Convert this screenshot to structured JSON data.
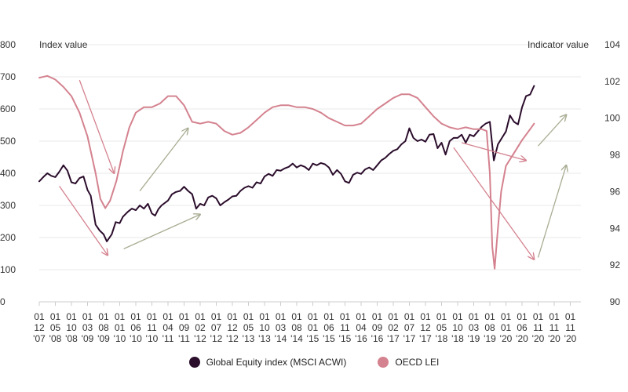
{
  "chart_data": {
    "type": "line",
    "title": "",
    "left_axis": {
      "label": "Index value",
      "ylim": [
        0,
        800
      ],
      "ticks": [
        0,
        100,
        200,
        300,
        400,
        500,
        600,
        700,
        800
      ]
    },
    "right_axis": {
      "label": "Indicator value",
      "ylim": [
        90,
        104
      ],
      "ticks": [
        90,
        92,
        94,
        96,
        98,
        100,
        102,
        104
      ]
    },
    "x_tick_labels": [
      [
        "01",
        "12",
        "'07"
      ],
      [
        "01",
        "05",
        "'08"
      ],
      [
        "01",
        "10",
        "'08"
      ],
      [
        "01",
        "03",
        "'09"
      ],
      [
        "01",
        "08",
        "'09"
      ],
      [
        "01",
        "01",
        "'10"
      ],
      [
        "01",
        "06",
        "'10"
      ],
      [
        "01",
        "11",
        "'10"
      ],
      [
        "01",
        "04",
        "'11"
      ],
      [
        "01",
        "09",
        "'11"
      ],
      [
        "01",
        "02",
        "'12"
      ],
      [
        "01",
        "07",
        "'12"
      ],
      [
        "01",
        "12",
        "'12"
      ],
      [
        "01",
        "05",
        "'13"
      ],
      [
        "01",
        "10",
        "'13"
      ],
      [
        "01",
        "03",
        "'14"
      ],
      [
        "01",
        "08",
        "'14"
      ],
      [
        "01",
        "01",
        "'15"
      ],
      [
        "01",
        "06",
        "'15"
      ],
      [
        "01",
        "11",
        "'15"
      ],
      [
        "01",
        "04",
        "'16"
      ],
      [
        "01",
        "09",
        "'16"
      ],
      [
        "01",
        "02",
        "'17"
      ],
      [
        "01",
        "07",
        "'17"
      ],
      [
        "01",
        "12",
        "'17"
      ],
      [
        "01",
        "05",
        "'18"
      ],
      [
        "01",
        "10",
        "'18"
      ],
      [
        "01",
        "03",
        "'19"
      ],
      [
        "01",
        "08",
        "'19"
      ],
      [
        "01",
        "01",
        "'20"
      ],
      [
        "01",
        "06",
        "'20"
      ],
      [
        "01",
        "11",
        "'20"
      ],
      [
        "01",
        "11",
        "'20"
      ],
      [
        "01",
        "11",
        "'20"
      ]
    ],
    "grid": "horizontal",
    "legend_position": "bottom-center",
    "series": [
      {
        "name": "Global Equity index (MSCI ACWI)",
        "axis": "left",
        "color": "#2b0d2c",
        "points": [
          [
            0,
            375
          ],
          [
            0.25,
            388
          ],
          [
            0.5,
            400
          ],
          [
            0.75,
            392
          ],
          [
            1,
            388
          ],
          [
            1.25,
            405
          ],
          [
            1.5,
            425
          ],
          [
            1.75,
            408
          ],
          [
            2,
            372
          ],
          [
            2.25,
            368
          ],
          [
            2.5,
            385
          ],
          [
            2.75,
            390
          ],
          [
            3,
            348
          ],
          [
            3.2,
            330
          ],
          [
            3.5,
            240
          ],
          [
            3.75,
            222
          ],
          [
            4,
            210
          ],
          [
            4.2,
            188
          ],
          [
            4.5,
            210
          ],
          [
            4.75,
            248
          ],
          [
            5,
            245
          ],
          [
            5.2,
            265
          ],
          [
            5.5,
            280
          ],
          [
            5.75,
            290
          ],
          [
            6,
            285
          ],
          [
            6.25,
            300
          ],
          [
            6.5,
            290
          ],
          [
            6.75,
            305
          ],
          [
            7,
            275
          ],
          [
            7.2,
            268
          ],
          [
            7.4,
            288
          ],
          [
            7.6,
            300
          ],
          [
            8,
            315
          ],
          [
            8.25,
            335
          ],
          [
            8.5,
            342
          ],
          [
            8.75,
            345
          ],
          [
            9,
            358
          ],
          [
            9.25,
            345
          ],
          [
            9.5,
            335
          ],
          [
            9.75,
            290
          ],
          [
            10,
            305
          ],
          [
            10.25,
            300
          ],
          [
            10.5,
            325
          ],
          [
            10.75,
            330
          ],
          [
            11,
            322
          ],
          [
            11.25,
            300
          ],
          [
            11.5,
            310
          ],
          [
            11.75,
            318
          ],
          [
            12,
            328
          ],
          [
            12.25,
            330
          ],
          [
            12.5,
            345
          ],
          [
            12.75,
            355
          ],
          [
            13,
            360
          ],
          [
            13.25,
            355
          ],
          [
            13.5,
            372
          ],
          [
            13.75,
            368
          ],
          [
            14,
            390
          ],
          [
            14.25,
            398
          ],
          [
            14.5,
            392
          ],
          [
            14.75,
            410
          ],
          [
            15,
            408
          ],
          [
            15.25,
            415
          ],
          [
            15.5,
            420
          ],
          [
            15.75,
            430
          ],
          [
            16,
            418
          ],
          [
            16.25,
            425
          ],
          [
            16.5,
            420
          ],
          [
            16.75,
            410
          ],
          [
            17,
            430
          ],
          [
            17.25,
            425
          ],
          [
            17.5,
            432
          ],
          [
            17.75,
            428
          ],
          [
            18,
            418
          ],
          [
            18.25,
            395
          ],
          [
            18.5,
            410
          ],
          [
            18.75,
            398
          ],
          [
            19,
            375
          ],
          [
            19.25,
            370
          ],
          [
            19.5,
            395
          ],
          [
            19.75,
            402
          ],
          [
            20,
            398
          ],
          [
            20.25,
            412
          ],
          [
            20.5,
            418
          ],
          [
            20.75,
            410
          ],
          [
            21,
            425
          ],
          [
            21.25,
            440
          ],
          [
            21.5,
            448
          ],
          [
            21.75,
            460
          ],
          [
            22,
            470
          ],
          [
            22.25,
            475
          ],
          [
            22.5,
            490
          ],
          [
            22.75,
            500
          ],
          [
            23,
            540
          ],
          [
            23.25,
            510
          ],
          [
            23.5,
            500
          ],
          [
            23.75,
            505
          ],
          [
            24,
            498
          ],
          [
            24.25,
            520
          ],
          [
            24.5,
            522
          ],
          [
            24.75,
            478
          ],
          [
            25,
            495
          ],
          [
            25.25,
            458
          ],
          [
            25.5,
            500
          ],
          [
            25.75,
            510
          ],
          [
            26,
            510
          ],
          [
            26.25,
            520
          ],
          [
            26.5,
            495
          ],
          [
            26.75,
            520
          ],
          [
            27,
            515
          ],
          [
            27.25,
            530
          ],
          [
            27.5,
            545
          ],
          [
            27.75,
            555
          ],
          [
            28,
            560
          ],
          [
            28.25,
            440
          ],
          [
            28.5,
            490
          ],
          [
            28.75,
            510
          ],
          [
            29,
            530
          ],
          [
            29.25,
            580
          ],
          [
            29.5,
            560
          ],
          [
            29.75,
            552
          ],
          [
            30,
            605
          ],
          [
            30.25,
            640
          ],
          [
            30.5,
            645
          ],
          [
            30.75,
            672
          ]
        ]
      },
      {
        "name": "OECD LEI",
        "axis": "right",
        "color": "#d4828f",
        "points": [
          [
            0,
            102.2
          ],
          [
            0.5,
            102.3
          ],
          [
            1,
            102.1
          ],
          [
            1.5,
            101.7
          ],
          [
            2,
            101.2
          ],
          [
            2.5,
            100.3
          ],
          [
            3,
            99.0
          ],
          [
            3.5,
            97.0
          ],
          [
            3.8,
            95.6
          ],
          [
            4.1,
            95.1
          ],
          [
            4.4,
            95.5
          ],
          [
            4.8,
            96.6
          ],
          [
            5.2,
            98.2
          ],
          [
            5.6,
            99.5
          ],
          [
            6,
            100.3
          ],
          [
            6.5,
            100.6
          ],
          [
            7,
            100.6
          ],
          [
            7.5,
            100.8
          ],
          [
            8,
            101.2
          ],
          [
            8.5,
            101.2
          ],
          [
            9,
            100.7
          ],
          [
            9.5,
            99.8
          ],
          [
            10,
            99.7
          ],
          [
            10.5,
            99.8
          ],
          [
            11,
            99.7
          ],
          [
            11.5,
            99.3
          ],
          [
            12,
            99.1
          ],
          [
            12.5,
            99.2
          ],
          [
            13,
            99.5
          ],
          [
            13.5,
            99.9
          ],
          [
            14,
            100.3
          ],
          [
            14.5,
            100.6
          ],
          [
            15,
            100.7
          ],
          [
            15.5,
            100.7
          ],
          [
            16,
            100.6
          ],
          [
            16.5,
            100.6
          ],
          [
            17,
            100.5
          ],
          [
            17.5,
            100.3
          ],
          [
            18,
            100.0
          ],
          [
            18.5,
            99.8
          ],
          [
            19,
            99.6
          ],
          [
            19.5,
            99.6
          ],
          [
            20,
            99.7
          ],
          [
            20.5,
            100.1
          ],
          [
            21,
            100.5
          ],
          [
            21.5,
            100.8
          ],
          [
            22,
            101.1
          ],
          [
            22.5,
            101.3
          ],
          [
            23,
            101.3
          ],
          [
            23.5,
            101.1
          ],
          [
            24,
            100.6
          ],
          [
            24.5,
            100.1
          ],
          [
            25,
            99.7
          ],
          [
            25.5,
            99.5
          ],
          [
            26,
            99.4
          ],
          [
            26.5,
            99.5
          ],
          [
            27,
            99.4
          ],
          [
            27.5,
            99.4
          ],
          [
            27.8,
            99.3
          ],
          [
            28.0,
            97.0
          ],
          [
            28.15,
            93.0
          ],
          [
            28.3,
            91.8
          ],
          [
            28.5,
            94.0
          ],
          [
            28.7,
            96.0
          ],
          [
            29.0,
            97.4
          ],
          [
            29.5,
            98.1
          ],
          [
            30,
            98.8
          ],
          [
            30.5,
            99.4
          ],
          [
            30.75,
            99.7
          ]
        ]
      }
    ],
    "annotations": [
      {
        "type": "arrow",
        "color": "#d4828f",
        "from": [
          2.5,
          690
        ],
        "to": [
          4.65,
          400
        ],
        "axis": "left"
      },
      {
        "type": "arrow",
        "color": "#d4828f",
        "from": [
          1.25,
          360
        ],
        "to": [
          4.25,
          145
        ],
        "axis": "left"
      },
      {
        "type": "arrow",
        "color": "#a9ad93",
        "from": [
          6.25,
          345
        ],
        "to": [
          9.25,
          540
        ],
        "axis": "left"
      },
      {
        "type": "arrow",
        "color": "#a9ad93",
        "from": [
          5.25,
          165
        ],
        "to": [
          10,
          272
        ],
        "axis": "left"
      },
      {
        "type": "arrow",
        "color": "#d4828f",
        "from": [
          26.25,
          495
        ],
        "to": [
          30.25,
          440
        ],
        "axis": "left"
      },
      {
        "type": "arrow",
        "color": "#d4828f",
        "from": [
          25.75,
          480
        ],
        "to": [
          30.75,
          132
        ],
        "axis": "left"
      },
      {
        "type": "arrow",
        "color": "#a9ad93",
        "from": [
          31,
          485
        ],
        "to": [
          32.75,
          582
        ],
        "axis": "left"
      },
      {
        "type": "arrow",
        "color": "#a9ad93",
        "from": [
          31,
          138
        ],
        "to": [
          32.75,
          425
        ],
        "axis": "left"
      }
    ]
  }
}
